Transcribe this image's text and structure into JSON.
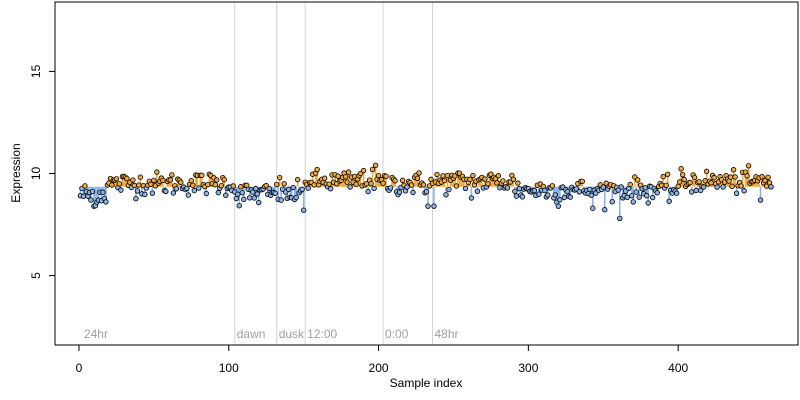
{
  "chart_data": {
    "type": "scatter",
    "title": "",
    "xlabel": "Sample index",
    "ylabel": "Expression",
    "xlim": [
      -16,
      480
    ],
    "ylim": [
      1.6,
      18.4
    ],
    "xticks": [
      0,
      100,
      200,
      300,
      400
    ],
    "yticks": [
      5,
      10,
      15
    ],
    "baseline": 9.35,
    "grid": false,
    "legend": "none",
    "colors": {
      "above": "#f0a840",
      "below": "#8ab4e8",
      "point_stroke": "#000000",
      "divider": "#d3d3d3",
      "region_label": "#a0a0a0"
    },
    "regions": [
      {
        "label": "24hr",
        "x": 2
      },
      {
        "label": "dawn",
        "x": 104
      },
      {
        "label": "dusk",
        "x": 132
      },
      {
        "label": "12:00",
        "x": 151
      },
      {
        "label": "0:00",
        "x": 203
      },
      {
        "label": "48hr",
        "x": 236
      }
    ],
    "dividers": [
      104,
      132,
      151,
      203,
      236
    ],
    "segments": [
      {
        "x0": 1,
        "x1": 18,
        "level": 9.0
      },
      {
        "x0": 19,
        "x1": 103,
        "level": 9.5
      },
      {
        "x0": 104,
        "x1": 150,
        "level": 9.0
      },
      {
        "x0": 151,
        "x1": 202,
        "level": 9.6
      },
      {
        "x0": 203,
        "x1": 235,
        "level": 9.5
      },
      {
        "x0": 236,
        "x1": 290,
        "level": 9.6
      },
      {
        "x0": 291,
        "x1": 400,
        "level": 9.2
      },
      {
        "x0": 401,
        "x1": 462,
        "level": 9.6
      }
    ],
    "noise": 0.28,
    "outliers": [
      {
        "x": 8,
        "y": 8.7
      },
      {
        "x": 10,
        "y": 8.4
      },
      {
        "x": 12,
        "y": 8.6
      },
      {
        "x": 134,
        "y": 9.8
      },
      {
        "x": 150,
        "y": 8.2
      },
      {
        "x": 188,
        "y": 10.0
      },
      {
        "x": 196,
        "y": 10.2
      },
      {
        "x": 198,
        "y": 10.4
      },
      {
        "x": 233,
        "y": 8.4
      },
      {
        "x": 237,
        "y": 8.4
      },
      {
        "x": 262,
        "y": 8.8
      },
      {
        "x": 320,
        "y": 8.4
      },
      {
        "x": 343,
        "y": 8.3
      },
      {
        "x": 361,
        "y": 7.8
      },
      {
        "x": 432,
        "y": 9.9
      },
      {
        "x": 455,
        "y": 8.7
      }
    ],
    "n_points": 462
  }
}
